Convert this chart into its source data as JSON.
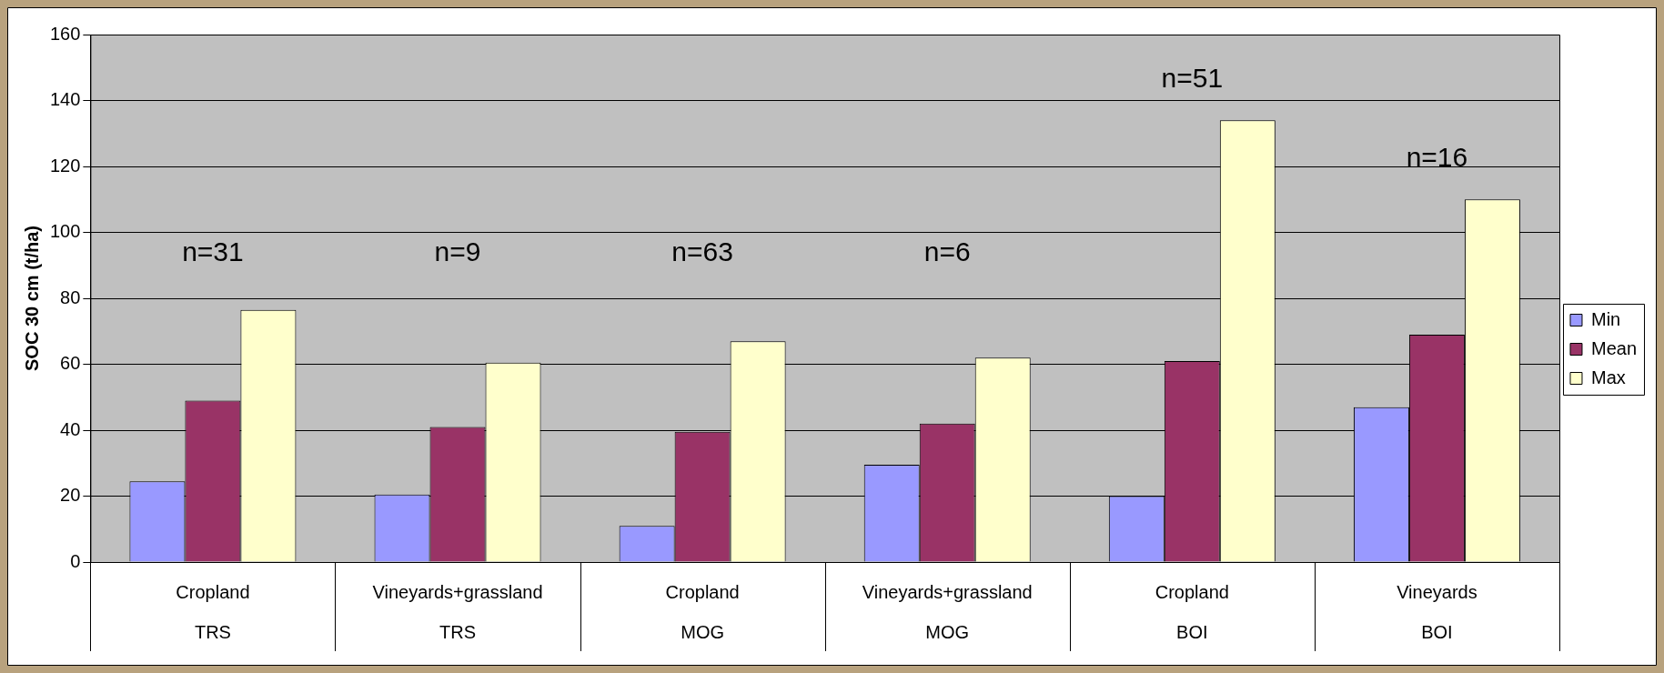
{
  "chart_data": {
    "type": "bar",
    "ylabel": "SOC 30 cm (t/ha)",
    "categories": [
      "Cropland\nTRS",
      "Vineyards+grassland\nTRS",
      "Cropland\nMOG",
      "Vineyards+grassland\nMOG",
      "Cropland\nBOI",
      "Vineyards\nBOI"
    ],
    "series": [
      {
        "name": "Min",
        "color": "#9999ff",
        "values": [
          24.5,
          20.5,
          11,
          29.5,
          20,
          47
        ]
      },
      {
        "name": "Mean",
        "color": "#993366",
        "values": [
          49,
          41,
          39.5,
          42,
          61,
          69
        ]
      },
      {
        "name": "Max",
        "color": "#ffffcc",
        "values": [
          76.5,
          60.5,
          67,
          62,
          134,
          110
        ]
      }
    ],
    "ylim": [
      0,
      160
    ],
    "yticks": [
      0,
      20,
      40,
      60,
      80,
      100,
      120,
      140,
      160
    ],
    "grid": "y",
    "legend": "right",
    "annotations": [
      "n=31",
      "n=9",
      "n=63",
      "n=6",
      "n=51",
      "n=16"
    ]
  }
}
